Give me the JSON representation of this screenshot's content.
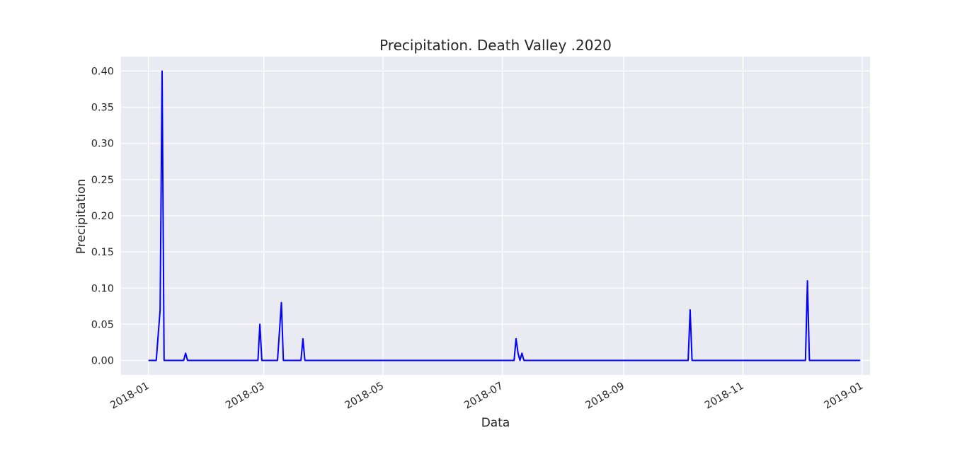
{
  "chart_data": {
    "type": "line",
    "title": "Precipitation. Death Valley .2020",
    "xlabel": "Data",
    "ylabel": "Precipitation",
    "x_ticks": [
      "2018-01",
      "2018-03",
      "2018-05",
      "2018-07",
      "2018-09",
      "2018-11",
      "2019-01"
    ],
    "y_ticks": [
      "0.00",
      "0.05",
      "0.10",
      "0.15",
      "0.20",
      "0.25",
      "0.30",
      "0.35",
      "0.40"
    ],
    "ylim": [
      -0.02,
      0.42
    ],
    "xlim": [
      "2017-12-18",
      "2019-01-05"
    ],
    "grid": true,
    "background": "#eaeaf2",
    "line_color": "#0000ff",
    "series": [
      {
        "x": [
          "2018-01-01",
          "2018-01-05",
          "2018-01-07",
          "2018-01-08",
          "2018-01-09",
          "2018-01-10",
          "2018-01-19",
          "2018-01-20",
          "2018-01-21",
          "2018-02-26",
          "2018-02-27",
          "2018-02-28",
          "2018-03-08",
          "2018-03-09",
          "2018-03-10",
          "2018-03-11",
          "2018-03-20",
          "2018-03-21",
          "2018-03-22",
          "2018-07-07",
          "2018-07-08",
          "2018-07-09",
          "2018-07-10",
          "2018-07-11",
          "2018-07-12",
          "2018-10-04",
          "2018-10-05",
          "2018-10-06",
          "2018-12-03",
          "2018-12-04",
          "2018-12-05",
          "2018-12-31"
        ],
        "values": [
          0,
          0,
          0.07,
          0.4,
          0,
          0,
          0,
          0.01,
          0,
          0,
          0.05,
          0,
          0,
          0.04,
          0.08,
          0,
          0,
          0.03,
          0,
          0,
          0.03,
          0.01,
          0,
          0.01,
          0,
          0,
          0.07,
          0,
          0,
          0.11,
          0,
          0
        ]
      }
    ]
  }
}
